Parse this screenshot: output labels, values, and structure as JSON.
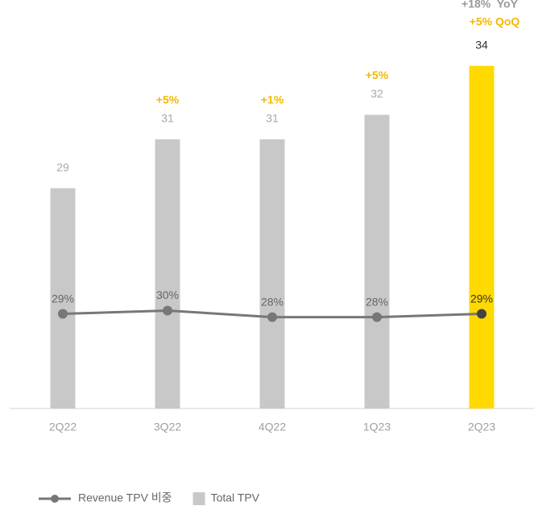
{
  "chart_data": {
    "type": "bar",
    "categories": [
      "2Q22",
      "3Q22",
      "4Q22",
      "1Q23",
      "2Q23"
    ],
    "series": [
      {
        "name": "Total TPV",
        "type": "bar",
        "color": "#c8c8c8",
        "colors": [
          "#c8c8c8",
          "#c8c8c8",
          "#c8c8c8",
          "#c8c8c8",
          "#ffd900"
        ],
        "values": [
          29,
          31,
          31,
          32,
          34
        ]
      },
      {
        "name": "Revenue TPV 비중",
        "type": "line",
        "axis": "y2",
        "color": "#777777",
        "values": [
          29,
          30,
          28,
          28,
          29
        ],
        "value_labels": [
          "29%",
          "30%",
          "28%",
          "28%",
          "29%"
        ]
      }
    ],
    "growth_labels": [
      null,
      "+5%",
      "+1%",
      "+5%",
      "+5% QoQ"
    ],
    "yoy_label": "+18%  YoY",
    "ylim": [
      20,
      36
    ],
    "y2lim": [
      0,
      120
    ],
    "legend": "bottom-left"
  }
}
